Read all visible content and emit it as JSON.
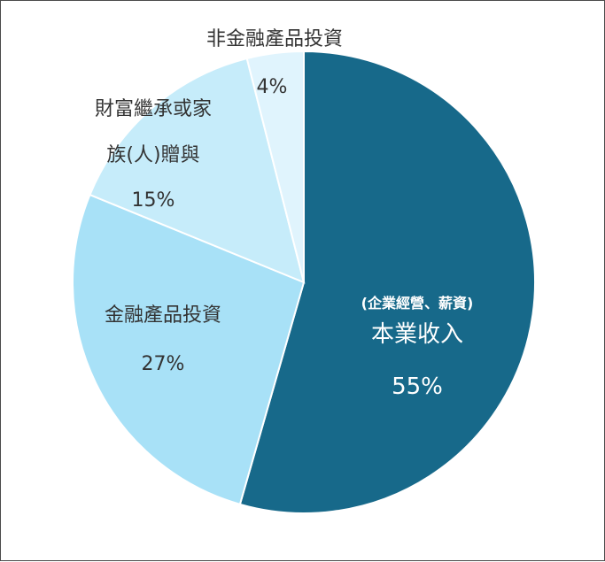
{
  "chart_data": {
    "type": "pie",
    "title": "",
    "slices": [
      {
        "label_top": "(企業經營、薪資)",
        "label": "本業收入",
        "value": 55,
        "value_text": "55%",
        "color": "#17698a",
        "text_color": "#ffffff"
      },
      {
        "label": "金融產品投資",
        "value": 27,
        "value_text": "27%",
        "color": "#a8e1f7",
        "text_color": "#333333"
      },
      {
        "label_lines": [
          "財富繼承或家",
          "族(人)贈與"
        ],
        "value": 15,
        "value_text": "15%",
        "color": "#c6ecfa",
        "text_color": "#333333"
      },
      {
        "label": "非金融產品投資",
        "value": 4,
        "value_text": "4%",
        "color": "#e0f4fd",
        "text_color": "#333333"
      }
    ]
  }
}
